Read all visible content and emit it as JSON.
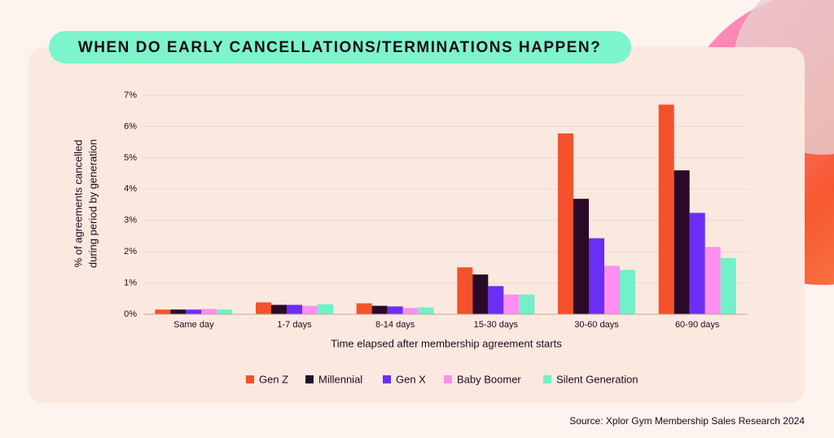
{
  "chart_data": {
    "type": "bar",
    "title": "WHEN DO EARLY CANCELLATIONS/TERMINATIONS HAPPEN?",
    "xlabel": "Time elapsed after membership agreement starts",
    "ylabel": [
      "% of agreements cancelled",
      "during period by generation"
    ],
    "source": "Source: Xplor Gym Membership Sales Research 2024",
    "categories": [
      "Same day",
      "1-7 days",
      "8-14 days",
      "15-30 days",
      "30-60 days",
      "60-90 days"
    ],
    "series": [
      {
        "name": "Gen Z",
        "color": "#f4512c",
        "values": [
          0.15,
          0.38,
          0.35,
          1.5,
          5.78,
          6.7
        ]
      },
      {
        "name": "Millennial",
        "color": "#2a0a26",
        "values": [
          0.15,
          0.3,
          0.27,
          1.27,
          3.69,
          4.6
        ]
      },
      {
        "name": "Gen X",
        "color": "#6b2ef5",
        "values": [
          0.15,
          0.3,
          0.25,
          0.9,
          2.43,
          3.24
        ]
      },
      {
        "name": "Baby Boomer",
        "color": "#ff8ff0",
        "values": [
          0.17,
          0.27,
          0.2,
          0.63,
          1.55,
          2.15
        ]
      },
      {
        "name": "Silent Generation",
        "color": "#72f0c8",
        "values": [
          0.15,
          0.32,
          0.22,
          0.63,
          1.42,
          1.8
        ]
      }
    ],
    "ylim": [
      0,
      7
    ],
    "yticks": [
      {
        "value": 0,
        "label": "0%"
      },
      {
        "value": 1,
        "label": "1%"
      },
      {
        "value": 2,
        "label": "2%"
      },
      {
        "value": 3,
        "label": "3%"
      },
      {
        "value": 4,
        "label": "4%"
      },
      {
        "value": 5,
        "label": "5%"
      },
      {
        "value": 6,
        "label": "6%"
      },
      {
        "value": 7,
        "label": "7%"
      }
    ],
    "grid": true,
    "legend": "bottom"
  }
}
